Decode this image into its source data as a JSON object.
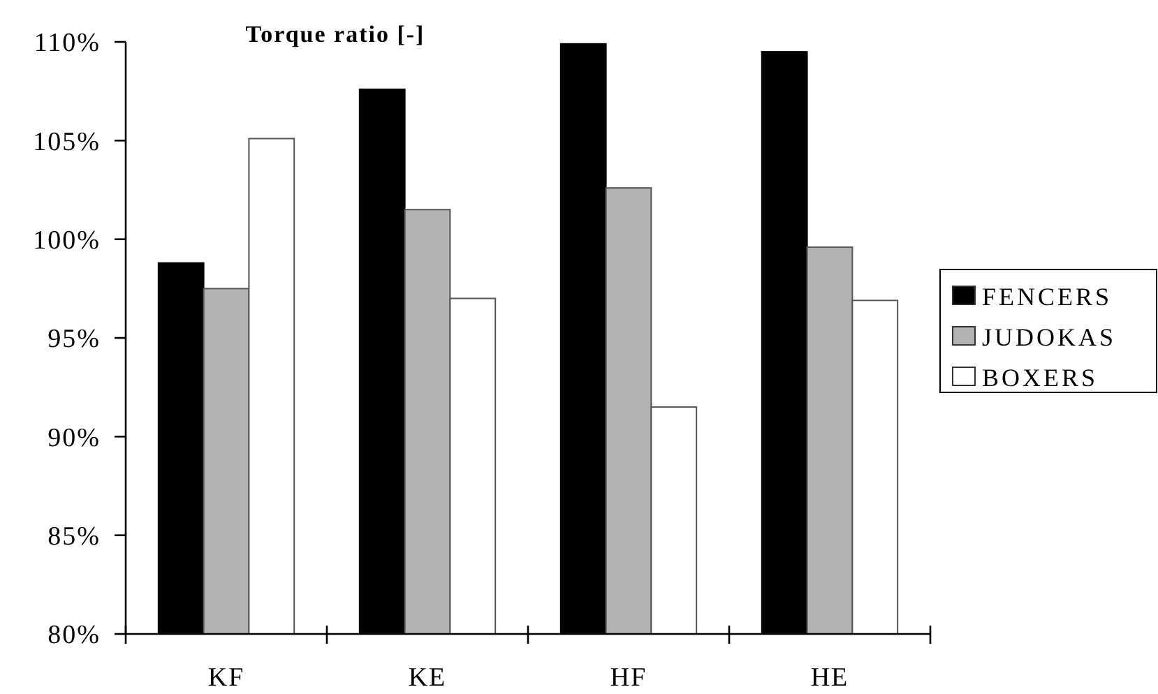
{
  "chart_data": {
    "type": "bar",
    "title": "Torque ratio [-]",
    "categories": [
      "KF",
      "KE",
      "HF",
      "HE"
    ],
    "series": [
      {
        "name": "FENCERS",
        "color": "#000000",
        "values": [
          98.8,
          107.6,
          109.9,
          109.5
        ]
      },
      {
        "name": "JUDOKAS",
        "color": "#b2b2b2",
        "values": [
          97.5,
          101.5,
          102.6,
          99.6
        ]
      },
      {
        "name": "BOXERS",
        "color": "#ffffff",
        "values": [
          105.1,
          97.0,
          91.5,
          96.9
        ]
      }
    ],
    "ylim": [
      80,
      110
    ],
    "yticks": [
      {
        "value": 80,
        "label": "80%"
      },
      {
        "value": 85,
        "label": "85%"
      },
      {
        "value": 90,
        "label": "90%"
      },
      {
        "value": 95,
        "label": "95%"
      },
      {
        "value": 100,
        "label": "100%"
      },
      {
        "value": 105,
        "label": "105%"
      },
      {
        "value": 110,
        "label": "110%"
      }
    ],
    "grid": false,
    "legend": "right"
  }
}
